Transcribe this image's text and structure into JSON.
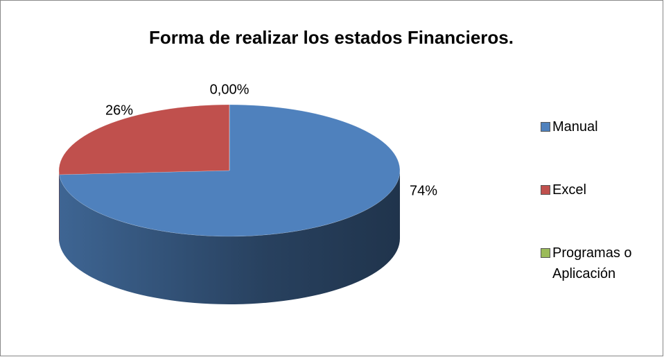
{
  "chart_data": {
    "type": "pie3d",
    "title": "Forma de realizar los estados Financieros.",
    "categories": [
      "Manual",
      "Excel",
      "Programas o Aplicación"
    ],
    "values": [
      74,
      26,
      0
    ],
    "value_labels": [
      "74%",
      "26%",
      "0,00%"
    ],
    "colors": [
      "#4f81bd",
      "#c0504d",
      "#9bbb59"
    ],
    "legend": "right"
  }
}
